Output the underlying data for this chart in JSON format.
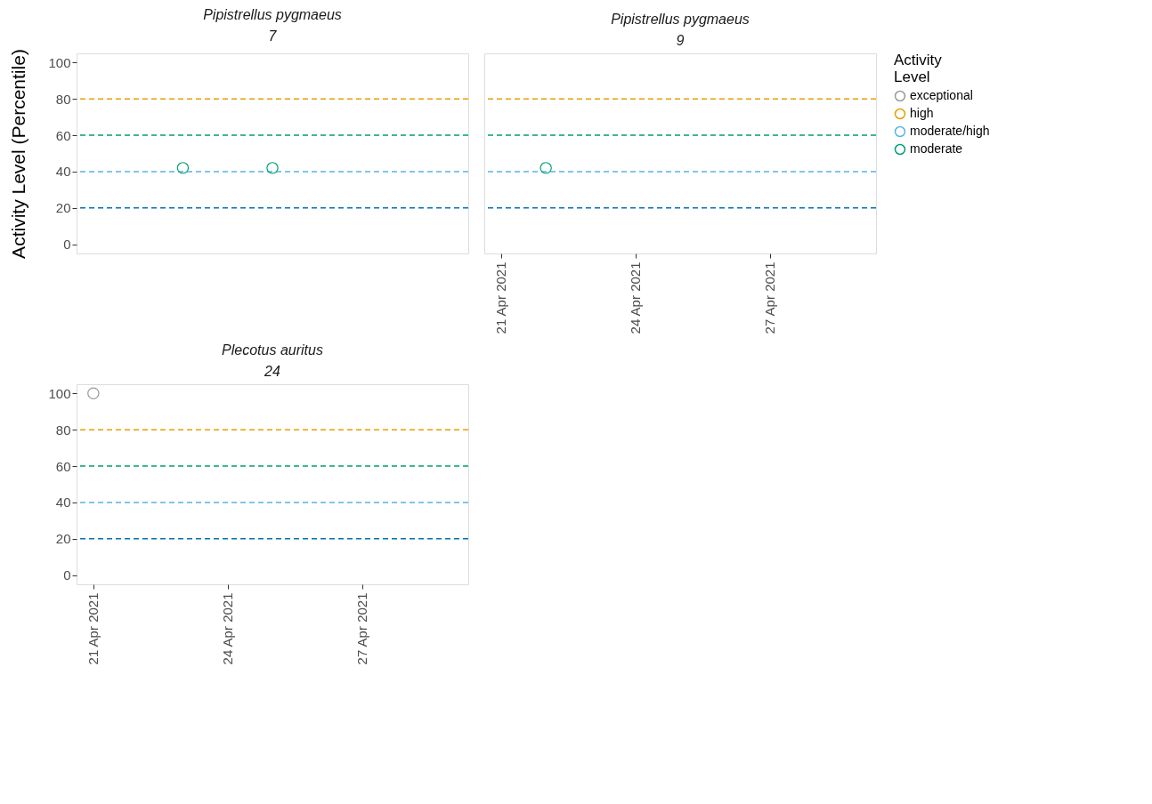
{
  "chart_data": [
    {
      "type": "scatter",
      "title": "Pipistrellus pygmaeus",
      "subtitle": "7",
      "ylabel": "Activity Level (Percentile)",
      "legend_title": "Activity Level",
      "legend": "right",
      "marker": "circle",
      "grid": false,
      "tick_labels": "y",
      "xlim": [
        "2021-04-20T15:00",
        "2021-04-29T09:00"
      ],
      "ylim": [
        -5,
        105
      ],
      "yticks": [
        0,
        20,
        40,
        60,
        80,
        100
      ],
      "ref_lines": [
        {
          "axis": "y",
          "value": 20,
          "color": "#0072b2",
          "line_style": "dashed"
        },
        {
          "axis": "y",
          "value": 40,
          "color": "#56b4e9",
          "line_style": "dashed"
        },
        {
          "axis": "y",
          "value": 60,
          "color": "#009e73",
          "line_style": "dashed"
        },
        {
          "axis": "y",
          "value": 80,
          "color": "#e69f00",
          "line_style": "dashed"
        }
      ],
      "series": [
        {
          "name": "exceptional",
          "color": "#999999"
        },
        {
          "name": "high",
          "color": "#e69f00"
        },
        {
          "name": "moderate/high",
          "color": "#56b4e9"
        },
        {
          "name": "moderate",
          "color": "#009e73",
          "x": [
            "2021-04-23",
            "2021-04-25"
          ],
          "values": [
            42,
            42
          ]
        }
      ]
    },
    {
      "type": "scatter",
      "title": "Pipistrellus pygmaeus",
      "subtitle": "9",
      "marker": "circle",
      "grid": false,
      "tick_labels": "x",
      "xlim": [
        "2021-04-20T15:00",
        "2021-04-29T09:00"
      ],
      "ylim": [
        -5,
        105
      ],
      "yticks": [
        0,
        20,
        40,
        60,
        80,
        100
      ],
      "xticks": [
        {
          "value": "2021-04-21",
          "label": "21 Apr 2021"
        },
        {
          "value": "2021-04-24",
          "label": "24 Apr 2021"
        },
        {
          "value": "2021-04-27",
          "label": "27 Apr 2021"
        }
      ],
      "ref_lines": [
        {
          "axis": "y",
          "value": 20,
          "color": "#0072b2",
          "line_style": "dashed"
        },
        {
          "axis": "y",
          "value": 40,
          "color": "#56b4e9",
          "line_style": "dashed"
        },
        {
          "axis": "y",
          "value": 60,
          "color": "#009e73",
          "line_style": "dashed"
        },
        {
          "axis": "y",
          "value": 80,
          "color": "#e69f00",
          "line_style": "dashed"
        }
      ],
      "series": [
        {
          "color": "#009e73",
          "x": [
            "2021-04-22"
          ],
          "values": [
            42
          ]
        }
      ]
    },
    {
      "type": "scatter",
      "title": "Plecotus auritus",
      "subtitle": "24",
      "marker": "circle",
      "grid": false,
      "xlim": [
        "2021-04-20T15:00",
        "2021-04-29T09:00"
      ],
      "ylim": [
        -5,
        105
      ],
      "yticks": [
        0,
        20,
        40,
        60,
        80,
        100
      ],
      "xticks": [
        {
          "value": "2021-04-21",
          "label": "21 Apr 2021"
        },
        {
          "value": "2021-04-24",
          "label": "24 Apr 2021"
        },
        {
          "value": "2021-04-27",
          "label": "27 Apr 2021"
        }
      ],
      "ref_lines": [
        {
          "axis": "y",
          "value": 20,
          "color": "#0072b2",
          "line_style": "dashed"
        },
        {
          "axis": "y",
          "value": 40,
          "color": "#56b4e9",
          "line_style": "dashed"
        },
        {
          "axis": "y",
          "value": 60,
          "color": "#009e73",
          "line_style": "dashed"
        },
        {
          "axis": "y",
          "value": 80,
          "color": "#e69f00",
          "line_style": "dashed"
        }
      ],
      "series": [
        {
          "color": "#999999",
          "x": [
            "2021-04-21"
          ],
          "values": [
            100
          ]
        }
      ]
    }
  ]
}
